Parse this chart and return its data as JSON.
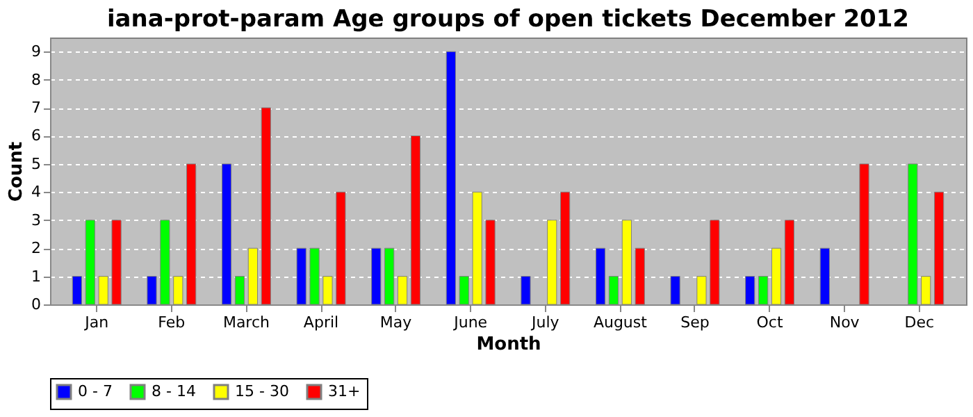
{
  "chart_data": {
    "type": "bar",
    "title": "iana-prot-param Age groups of open tickets December 2012",
    "xlabel": "Month",
    "ylabel": "Count",
    "categories": [
      "Jan",
      "Feb",
      "March",
      "April",
      "May",
      "June",
      "July",
      "August",
      "Sep",
      "Oct",
      "Nov",
      "Dec"
    ],
    "series": [
      {
        "name": "0 - 7",
        "color": "#0000ff",
        "values": [
          1,
          1,
          5,
          2,
          2,
          9,
          1,
          2,
          1,
          1,
          2,
          0
        ]
      },
      {
        "name": "8 - 14",
        "color": "#00ff00",
        "values": [
          3,
          3,
          1,
          2,
          2,
          1,
          0,
          1,
          0,
          1,
          0,
          5
        ]
      },
      {
        "name": "15 - 30",
        "color": "#ffff00",
        "values": [
          1,
          1,
          2,
          1,
          1,
          4,
          3,
          3,
          1,
          2,
          0,
          1
        ]
      },
      {
        "name": "31+",
        "color": "#ff0000",
        "values": [
          3,
          5,
          7,
          4,
          6,
          3,
          4,
          2,
          3,
          3,
          5,
          4
        ]
      }
    ],
    "ylim": [
      0,
      9.5
    ],
    "yticks": [
      0,
      1,
      2,
      3,
      4,
      5,
      6,
      7,
      8,
      9
    ],
    "grid": "y",
    "legend": "bottom"
  }
}
